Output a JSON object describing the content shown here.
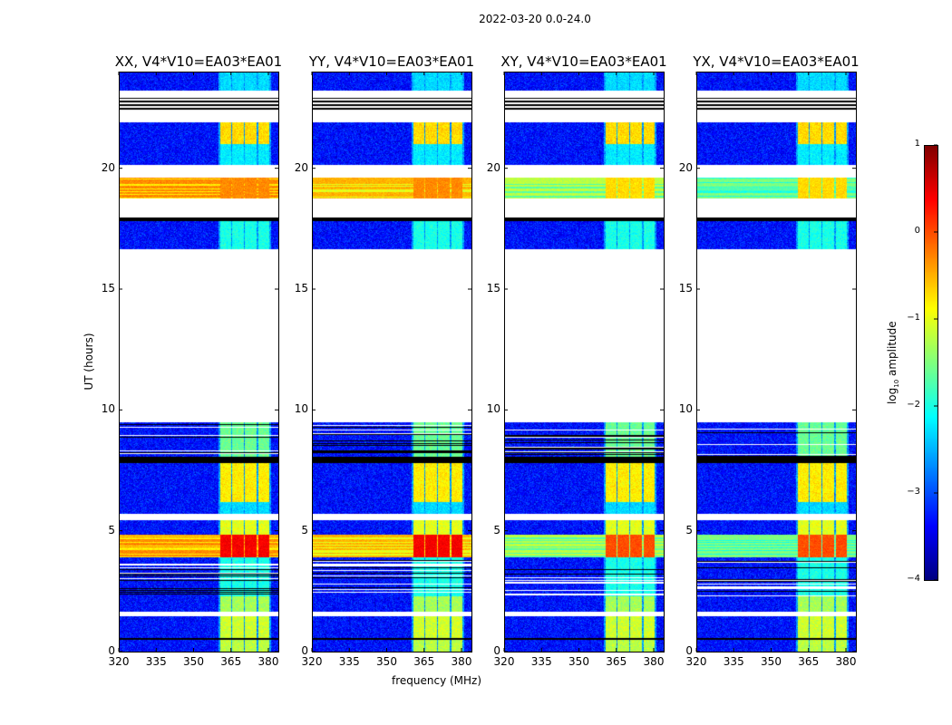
{
  "figure_title": "2022-03-20 0.0-24.0",
  "chart_data": [
    {
      "type": "heatmap",
      "panels": [
        {
          "title": "XX, V4*V10=EA03*EA01",
          "band_level": 0.0,
          "rfi_boost": 0.6
        },
        {
          "title": "YY, V4*V10=EA03*EA01",
          "band_level": -0.2,
          "rfi_boost": 0.6
        },
        {
          "title": "XY, V4*V10=EA03*EA01",
          "band_level": -0.9,
          "rfi_boost": 0.6
        },
        {
          "title": "YX, V4*V10=EA03*EA01",
          "band_level": -1.2,
          "rfi_boost": 0.6
        }
      ],
      "xlabel": "frequency (MHz)",
      "ylabel": "UT (hours)",
      "xlim": [
        320,
        384
      ],
      "ylim": [
        0,
        24
      ],
      "xticks": [
        "320",
        "335",
        "350",
        "365",
        "380"
      ],
      "xtick_values": [
        320,
        335,
        350,
        365,
        380
      ],
      "yticks": [
        "0",
        "5",
        "10",
        "15",
        "20"
      ],
      "ytick_values": [
        0,
        5,
        10,
        15,
        20
      ],
      "background_level": -3.3,
      "rfi_channels_mhz": [
        [
          360.8,
          365.1
        ],
        [
          365.5,
          370.2
        ],
        [
          370.6,
          375.3
        ],
        [
          376.0,
          380.4
        ]
      ],
      "time_segments": [
        {
          "start": 0.0,
          "end": 0.5,
          "state": "data",
          "rfi": -1.2
        },
        {
          "start": 0.5,
          "end": 0.55,
          "state": "flagged"
        },
        {
          "start": 0.55,
          "end": 1.45,
          "state": "data",
          "rfi": -1.1
        },
        {
          "start": 1.45,
          "end": 1.65,
          "state": "empty"
        },
        {
          "start": 1.65,
          "end": 2.3,
          "state": "data",
          "rfi": -1.3
        },
        {
          "start": 2.3,
          "end": 3.9,
          "state": "sparse",
          "rfi": -2.0
        },
        {
          "start": 3.9,
          "end": 4.85,
          "state": "band",
          "rfi": 0.4
        },
        {
          "start": 4.85,
          "end": 5.45,
          "state": "data",
          "rfi": -1.0
        },
        {
          "start": 5.45,
          "end": 5.7,
          "state": "empty"
        },
        {
          "start": 5.7,
          "end": 6.2,
          "state": "data",
          "rfi": -2.3
        },
        {
          "start": 6.2,
          "end": 7.8,
          "state": "data",
          "rfi": -0.8
        },
        {
          "start": 7.8,
          "end": 8.05,
          "state": "flagged"
        },
        {
          "start": 8.05,
          "end": 9.5,
          "state": "sparse",
          "rfi": -1.6
        },
        {
          "start": 9.5,
          "end": 16.65,
          "state": "empty"
        },
        {
          "start": 16.65,
          "end": 17.8,
          "state": "data",
          "rfi": -2.0
        },
        {
          "start": 17.8,
          "end": 17.95,
          "state": "flagged"
        },
        {
          "start": 17.95,
          "end": 18.75,
          "state": "empty"
        },
        {
          "start": 18.75,
          "end": 19.6,
          "state": "band",
          "rfi": -0.3
        },
        {
          "start": 19.6,
          "end": 20.15,
          "state": "empty"
        },
        {
          "start": 20.15,
          "end": 21.0,
          "state": "data",
          "rfi": -2.2
        },
        {
          "start": 21.0,
          "end": 21.9,
          "state": "data",
          "rfi": -0.7
        },
        {
          "start": 21.9,
          "end": 22.4,
          "state": "empty"
        },
        {
          "start": 22.4,
          "end": 22.9,
          "state": "flagged_lines"
        },
        {
          "start": 22.9,
          "end": 23.2,
          "state": "empty"
        },
        {
          "start": 23.2,
          "end": 24.0,
          "state": "data",
          "rfi": -2.3
        }
      ],
      "colorbar": {
        "label": "log10 amplitude",
        "label_main": "log",
        "label_sub": "10",
        "label_rest": " amplitude",
        "colormap": "jet",
        "range": [
          -4,
          1
        ],
        "ticks": [
          "−4",
          "−3",
          "−2",
          "−1",
          "0",
          "1"
        ],
        "tick_values": [
          -4,
          -3,
          -2,
          -1,
          0,
          1
        ]
      }
    }
  ]
}
